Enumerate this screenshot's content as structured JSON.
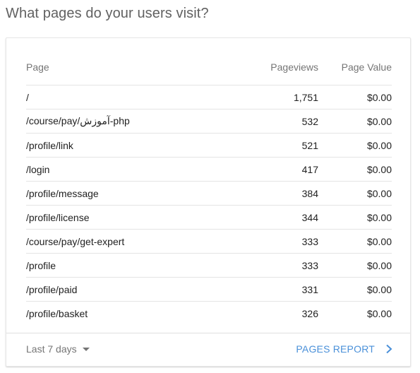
{
  "title": "What pages do your users visit?",
  "table": {
    "headers": {
      "page": "Page",
      "pageviews": "Pageviews",
      "page_value": "Page Value"
    },
    "rows": [
      {
        "page": "/",
        "pageviews": "1,751",
        "page_value": "$0.00"
      },
      {
        "page": "/course/pay/آموزش-php",
        "pageviews": "532",
        "page_value": "$0.00"
      },
      {
        "page": "/profile/link",
        "pageviews": "521",
        "page_value": "$0.00"
      },
      {
        "page": "/login",
        "pageviews": "417",
        "page_value": "$0.00"
      },
      {
        "page": "/profile/message",
        "pageviews": "384",
        "page_value": "$0.00"
      },
      {
        "page": "/profile/license",
        "pageviews": "344",
        "page_value": "$0.00"
      },
      {
        "page": "/course/pay/get-expert",
        "pageviews": "333",
        "page_value": "$0.00"
      },
      {
        "page": "/profile",
        "pageviews": "333",
        "page_value": "$0.00"
      },
      {
        "page": "/profile/paid",
        "pageviews": "331",
        "page_value": "$0.00"
      },
      {
        "page": "/profile/basket",
        "pageviews": "326",
        "page_value": "$0.00"
      }
    ]
  },
  "footer": {
    "date_range": "Last 7 days",
    "report_link": "PAGES REPORT"
  },
  "icons": {
    "date_caret": "caret-down-icon",
    "report_chevron": "chevron-right-icon"
  },
  "colors": {
    "link": "#4a90d9",
    "title": "#616161"
  }
}
